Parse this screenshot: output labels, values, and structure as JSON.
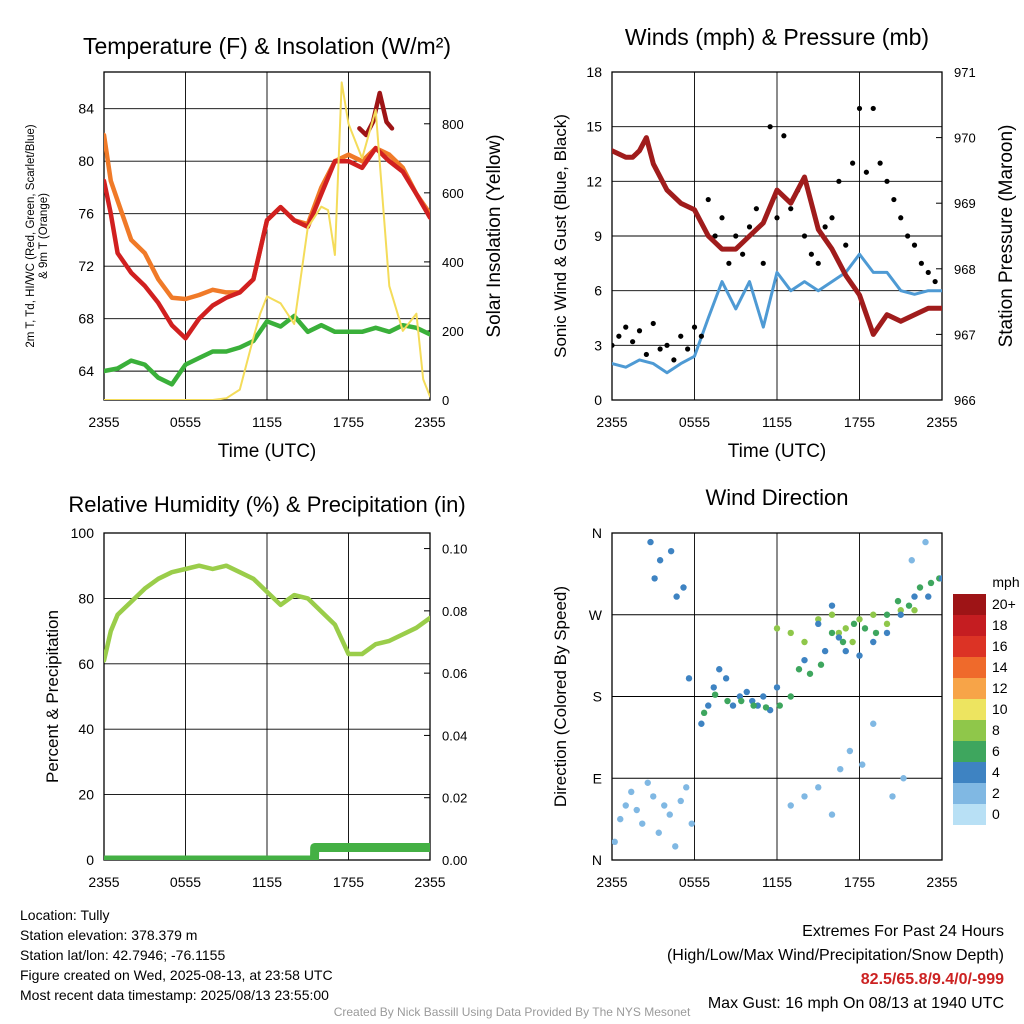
{
  "chart_data": [
    {
      "type": "line",
      "title": "Temperature (F) & Insolation (W/m²)",
      "xlabel": "Time (UTC)",
      "ylabel": "2m T, Td, HI/WC (Red, Green, Scarlet/Blue) & 9m T (Orange)",
      "y2label": "Solar Insolation (Yellow)",
      "x_ticks": [
        "2355",
        "0555",
        "1155",
        "1755",
        "2355"
      ],
      "y_ticks": [
        64,
        68,
        72,
        76,
        80,
        84
      ],
      "y2_ticks": [
        0,
        200,
        400,
        600,
        800
      ],
      "ylim": [
        61.8,
        86.8
      ],
      "y2lim": [
        0,
        950
      ],
      "xlim": [
        0,
        24
      ],
      "grid": true,
      "series": [
        {
          "axis": "left",
          "color": "#f07a28",
          "x": [
            0,
            0.5,
            1,
            2,
            3,
            4,
            5,
            6,
            7,
            8,
            9,
            10,
            11,
            12,
            13,
            14,
            15,
            16,
            17,
            18,
            19,
            20,
            21,
            22,
            23,
            24
          ],
          "values": [
            82,
            78.5,
            77,
            74,
            73,
            71,
            69.6,
            69.5,
            69.8,
            70.2,
            70,
            70,
            71,
            75.5,
            76.5,
            75.5,
            75.2,
            78,
            80,
            80.5,
            80,
            81,
            80.5,
            79.5,
            77.5,
            76
          ]
        },
        {
          "axis": "left",
          "color": "#d12020",
          "x": [
            0,
            0.5,
            1,
            2,
            3,
            4,
            5,
            6,
            7,
            8,
            9,
            10,
            11,
            12,
            13,
            14,
            15,
            16,
            17,
            18,
            19,
            20,
            21,
            22,
            23,
            24
          ],
          "values": [
            78.5,
            76,
            73,
            71.5,
            70.5,
            69.2,
            67.5,
            66.5,
            68,
            69,
            69.6,
            70,
            71,
            75.5,
            76.5,
            75.5,
            75,
            77.5,
            80,
            80,
            79.5,
            81,
            80,
            79.2,
            77.5,
            75.7
          ]
        },
        {
          "axis": "left",
          "color": "#9e1416",
          "x": [
            18.8,
            19.3,
            19.8,
            20.3,
            20.8,
            21.2
          ],
          "values": [
            82.5,
            82,
            83,
            85.2,
            83,
            82.5
          ]
        },
        {
          "axis": "left",
          "color": "#3ab03a",
          "x": [
            0,
            1,
            2,
            3,
            4,
            5,
            6,
            7,
            8,
            9,
            10,
            11,
            12,
            13,
            14,
            15,
            16,
            17,
            18,
            19,
            20,
            21,
            22,
            23,
            24
          ],
          "values": [
            64,
            64.2,
            64.8,
            64.5,
            63.5,
            63,
            64.5,
            65,
            65.5,
            65.5,
            65.8,
            66.3,
            67.8,
            67.4,
            68.2,
            67,
            67.5,
            67,
            67,
            67,
            67.3,
            67,
            67.5,
            67.3,
            66.8
          ]
        },
        {
          "axis": "right",
          "color": "#f4dc5a",
          "x": [
            0,
            1,
            2,
            3,
            4,
            5,
            6,
            7,
            8,
            9,
            10,
            11,
            11.5,
            12,
            13,
            14,
            15,
            16,
            16.5,
            17,
            17.5,
            18,
            19,
            20,
            21,
            22,
            23,
            23.5,
            24
          ],
          "values": [
            0,
            0,
            0,
            0,
            0,
            0,
            0,
            0,
            0,
            5,
            30,
            180,
            250,
            300,
            280,
            220,
            500,
            560,
            550,
            420,
            920,
            800,
            700,
            840,
            330,
            200,
            250,
            60,
            10
          ]
        }
      ]
    },
    {
      "type": "scatter",
      "title": "Winds (mph) & Pressure (mb)",
      "xlabel": "Time (UTC)",
      "ylabel": "Sonic Wind & Gust (Blue, Black)",
      "y2label": "Station Pressure (Maroon)",
      "x_ticks": [
        "2355",
        "0555",
        "1155",
        "1755",
        "2355"
      ],
      "y_ticks": [
        0,
        3,
        6,
        9,
        12,
        15,
        18
      ],
      "y2_ticks": [
        966,
        967,
        968,
        969,
        970,
        971
      ],
      "ylim": [
        0,
        18
      ],
      "y2lim": [
        966,
        971
      ],
      "xlim": [
        0,
        24
      ],
      "grid": true,
      "series": [
        {
          "axis": "left",
          "kind": "line",
          "color": "#4e9ad4",
          "x": [
            0,
            1,
            2,
            3,
            4,
            5,
            6,
            7,
            8,
            9,
            10,
            11,
            12,
            13,
            14,
            15,
            16,
            17,
            18,
            19,
            20,
            21,
            22,
            23,
            24
          ],
          "values": [
            2,
            1.8,
            2.2,
            2,
            1.5,
            2,
            2.4,
            4.5,
            6.5,
            5,
            6.5,
            4,
            7,
            6,
            6.5,
            6,
            6.5,
            7,
            8,
            7,
            7,
            6,
            5.8,
            6,
            6
          ]
        },
        {
          "axis": "left",
          "kind": "scatter",
          "color": "#000000",
          "x": [
            0,
            0.5,
            1,
            1.5,
            2,
            2.5,
            3,
            3.5,
            4,
            4.5,
            5,
            5.5,
            6,
            6.5,
            7,
            7.5,
            8,
            8.5,
            9,
            9.5,
            10,
            10.5,
            11,
            11.5,
            12,
            12.5,
            13,
            13.5,
            14,
            14.5,
            15,
            15.5,
            16,
            16.5,
            17,
            17.5,
            18,
            18.5,
            19,
            19.5,
            20,
            20.5,
            21,
            21.5,
            22,
            22.5,
            23,
            23.5
          ],
          "values": [
            3,
            3.5,
            4,
            3.2,
            3.8,
            2.5,
            4.2,
            2.8,
            3,
            2.2,
            3.5,
            2.8,
            4,
            3.5,
            11,
            9,
            10,
            7.5,
            9,
            8,
            9.5,
            10.5,
            7.5,
            15,
            10,
            14.5,
            10.5,
            11.5,
            9,
            8,
            7.5,
            9.5,
            10,
            12,
            8.5,
            13,
            16,
            12.5,
            16,
            13,
            12,
            11,
            10,
            9,
            8.5,
            7.5,
            7,
            6.5
          ]
        },
        {
          "axis": "right",
          "kind": "line",
          "color": "#a01c1c",
          "x": [
            0,
            1,
            1.5,
            2,
            2.5,
            3,
            4,
            5,
            6,
            7,
            8,
            9,
            10,
            11,
            12,
            13,
            14,
            15,
            16,
            17,
            18,
            19,
            20,
            21,
            22,
            23,
            24
          ],
          "values": [
            969.8,
            969.7,
            969.7,
            969.8,
            970,
            969.6,
            969.2,
            969,
            968.9,
            968.5,
            968.3,
            968.3,
            968.5,
            968.7,
            969.2,
            969,
            969.4,
            968.6,
            968.3,
            967.9,
            967.6,
            967.0,
            967.3,
            967.2,
            967.3,
            967.4,
            967.4
          ]
        }
      ]
    },
    {
      "type": "line",
      "title": "Relative Humidity (%) & Precipitation (in)",
      "ylabel": "Percent & Precipitation",
      "x_ticks": [
        "2355",
        "0555",
        "1155",
        "1755",
        "2355"
      ],
      "y_ticks": [
        0,
        20,
        40,
        60,
        80,
        100
      ],
      "y2_ticks": [
        "0.00",
        "0.02",
        "0.04",
        "0.06",
        "0.08",
        "0.10"
      ],
      "ylim": [
        0,
        100
      ],
      "y2lim": [
        0,
        0.105
      ],
      "xlim": [
        0,
        24
      ],
      "grid": true,
      "series": [
        {
          "axis": "left",
          "color": "#9acd4a",
          "x": [
            0,
            0.5,
            1,
            2,
            3,
            4,
            5,
            6,
            7,
            8,
            9,
            10,
            11,
            12,
            13,
            14,
            15,
            16,
            17,
            18,
            19,
            20,
            21,
            22,
            23,
            24
          ],
          "values": [
            61,
            70,
            75,
            79,
            83,
            86,
            88,
            89,
            90,
            89,
            90,
            88,
            86,
            82,
            78,
            81,
            80,
            76,
            72,
            63,
            63,
            66,
            67,
            69,
            71,
            74
          ]
        },
        {
          "axis": "right",
          "color": "#44b044",
          "x": [
            0,
            15.5,
            15.51,
            24
          ],
          "values": [
            0,
            0,
            0.004,
            0.004
          ]
        }
      ]
    },
    {
      "type": "scatter",
      "title": "Wind Direction",
      "ylabel": "Direction (Colored By Speed)",
      "x_ticks": [
        "2355",
        "0555",
        "1155",
        "1755",
        "2355"
      ],
      "y_ticks": [
        "N",
        "E",
        "S",
        "W",
        "N"
      ],
      "ylim": [
        0,
        360
      ],
      "xlim": [
        0,
        24
      ],
      "grid": true,
      "colorbar": {
        "title": "mph",
        "labels": [
          "20+",
          "18",
          "16",
          "14",
          "12",
          "10",
          "8",
          "6",
          "4",
          "2",
          "0"
        ],
        "colors": [
          "#9e1416",
          "#c51d21",
          "#dc3325",
          "#ef6a2b",
          "#f7a448",
          "#ede460",
          "#8fc74a",
          "#3ea65e",
          "#3e83c2",
          "#80b8e3",
          "#b8e0f5"
        ]
      },
      "series": [
        {
          "x": [
            0.2,
            0.6,
            1,
            1.4,
            1.8,
            2.2,
            2.6,
            3,
            3.4,
            3.8,
            4.2,
            4.6,
            5,
            5.4,
            5.8
          ],
          "values": [
            20,
            45,
            60,
            75,
            55,
            40,
            85,
            70,
            30,
            60,
            50,
            15,
            65,
            80,
            40
          ],
          "speed_color": "#80b8e3"
        },
        {
          "x": [
            2.8,
            3.1,
            3.5,
            4.3,
            4.7,
            5.2,
            5.6,
            6.5,
            7,
            7.4,
            7.8,
            8.3,
            8.8,
            9.3,
            9.8,
            10.2,
            10.6,
            11,
            11.5,
            12
          ],
          "values": [
            350,
            310,
            330,
            340,
            290,
            300,
            200,
            150,
            170,
            190,
            210,
            200,
            170,
            180,
            185,
            175,
            170,
            180,
            165,
            190
          ],
          "speed_color": "#3e83c2"
        },
        {
          "x": [
            6.7,
            7.5,
            8.4,
            9.4,
            10.3,
            11.2,
            12.2,
            13,
            13.6,
            14.4,
            15.2,
            16,
            16.8,
            17.6,
            18.4,
            19.2,
            20,
            20.8,
            21.6,
            22.4,
            23.2,
            23.8
          ],
          "values": [
            162,
            182,
            175,
            175,
            170,
            168,
            170,
            180,
            210,
            205,
            215,
            250,
            240,
            260,
            255,
            250,
            270,
            285,
            280,
            300,
            305,
            310
          ],
          "speed_color": "#3ea65e"
        },
        {
          "x": [
            12,
            13,
            14,
            15,
            16,
            16.5,
            17,
            17.5,
            18,
            19,
            20,
            21,
            22
          ],
          "values": [
            255,
            250,
            240,
            265,
            270,
            250,
            255,
            240,
            265,
            270,
            260,
            275,
            275
          ],
          "speed_color": "#8fc74a"
        },
        {
          "x": [
            14,
            15,
            15.5,
            16,
            16.5,
            17,
            18,
            19,
            20,
            21,
            22,
            23,
            24
          ],
          "values": [
            220,
            260,
            230,
            280,
            245,
            230,
            225,
            240,
            250,
            270,
            290,
            290,
            310
          ],
          "speed_color": "#3e83c2"
        },
        {
          "x": [
            13,
            14,
            15,
            16,
            16.6,
            17.3,
            18.2,
            19,
            20.4,
            21.2,
            21.8,
            22.8
          ],
          "values": [
            60,
            70,
            80,
            50,
            100,
            120,
            105,
            150,
            70,
            90,
            330,
            350
          ],
          "speed_color": "#80b8e3"
        }
      ]
    }
  ],
  "info": {
    "location": "Location: Tully",
    "elevation": "Station elevation: 378.379 m",
    "latlon": "Station lat/lon: 42.7946; -76.1155",
    "created": "Figure created on Wed, 2025-08-13, at 23:58 UTC",
    "recent": "Most recent data timestamp: 2025/08/13 23:55:00"
  },
  "extremes": {
    "title": "Extremes For Past 24 Hours",
    "subtitle": "(High/Low/Max Wind/Precipitation/Snow Depth)",
    "values": "82.5/65.8/9.4/0/-999",
    "gust": "Max Gust: 16 mph On 08/13 at 1940 UTC"
  },
  "credit": "Created By Nick Bassill Using Data Provided By The NYS Mesonet"
}
